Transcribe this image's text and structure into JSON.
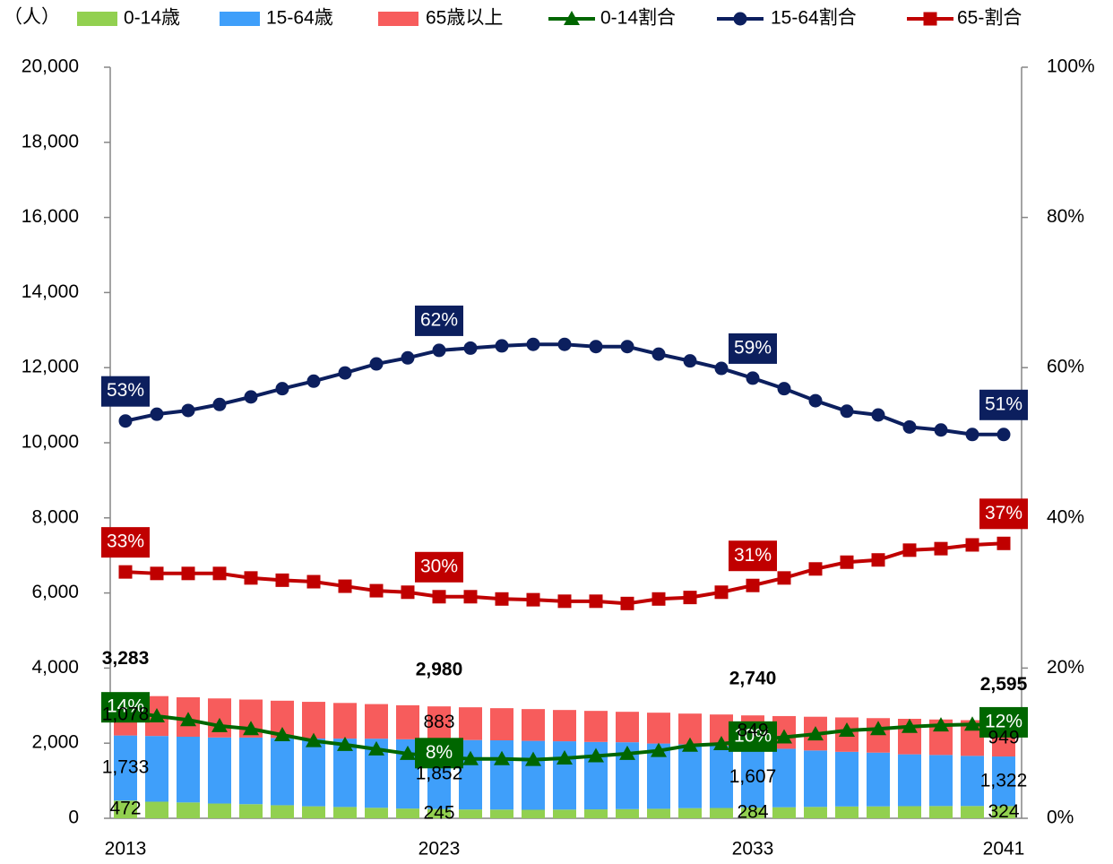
{
  "chart_data": {
    "type": "bar",
    "y_label": "（人）",
    "categories": [
      "2013",
      null,
      null,
      null,
      null,
      null,
      null,
      null,
      null,
      null,
      "2023",
      null,
      null,
      null,
      null,
      null,
      null,
      null,
      null,
      null,
      "2033",
      null,
      null,
      null,
      null,
      null,
      null,
      null,
      "2041"
    ],
    "ylim": [
      0,
      20000
    ],
    "yticks": [
      0,
      {
        "value": 2000,
        "label": "2,000"
      },
      {
        "value": 4000,
        "label": "4,000"
      },
      {
        "value": 6000,
        "label": "6,000"
      },
      {
        "value": 8000,
        "label": "8,000"
      },
      {
        "value": 10000,
        "label": "10,000"
      },
      {
        "value": 12000,
        "label": "12,000"
      },
      {
        "value": 14000,
        "label": "14,000"
      },
      {
        "value": 16000,
        "label": "16,000"
      },
      {
        "value": 18000,
        "label": "18,000"
      },
      {
        "value": 20000,
        "label": "20,000"
      }
    ],
    "y2lim": [
      0,
      100
    ],
    "y2ticks": [
      {
        "value": 0,
        "label": "0%"
      },
      {
        "value": 20,
        "label": "20%"
      },
      {
        "value": 40,
        "label": "40%"
      },
      {
        "value": 60,
        "label": "60%"
      },
      {
        "value": 80,
        "label": "80%"
      },
      {
        "value": 100,
        "label": "100%"
      }
    ],
    "series": [
      {
        "name": "0-14歳",
        "type": "bar",
        "color": "#92d050",
        "values": [
          472,
          442,
          422,
          393,
          376,
          348,
          319,
          301,
          280,
          259,
          245,
          234,
          232,
          227,
          231,
          237,
          244,
          253,
          270,
          274,
          284,
          294,
          303,
          314,
          317,
          323,
          326,
          327,
          324
        ],
        "value_labels": [
          "472",
          null,
          null,
          null,
          null,
          null,
          null,
          null,
          null,
          null,
          "245",
          null,
          null,
          null,
          null,
          null,
          null,
          null,
          null,
          null,
          "284",
          null,
          null,
          null,
          null,
          null,
          null,
          null,
          "324"
        ]
      },
      {
        "name": "15-64歳",
        "type": "bar",
        "color": "#3f9ffa",
        "values": [
          1733,
          1750,
          1750,
          1759,
          1774,
          1791,
          1805,
          1821,
          1840,
          1845,
          1852,
          1850,
          1844,
          1835,
          1820,
          1796,
          1781,
          1738,
          1698,
          1656,
          1607,
          1557,
          1503,
          1456,
          1432,
          1380,
          1360,
          1335,
          1322
        ],
        "value_labels": [
          "1,733",
          null,
          null,
          null,
          null,
          null,
          null,
          null,
          null,
          null,
          "1,852",
          null,
          null,
          null,
          null,
          null,
          null,
          null,
          null,
          null,
          "1,607",
          null,
          null,
          null,
          null,
          null,
          null,
          null,
          "1,322"
        ]
      },
      {
        "name": "65歳以上",
        "type": "bar",
        "color": "#f75c5c",
        "values": [
          1078,
          1061,
          1050,
          1040,
          1012,
          992,
          977,
          949,
          921,
          906,
          883,
          872,
          856,
          846,
          833,
          827,
          811,
          821,
          820,
          834,
          849,
          871,
          898,
          916,
          918,
          946,
          945,
          951,
          949
        ],
        "value_labels": [
          "1,078",
          null,
          null,
          null,
          null,
          null,
          null,
          null,
          null,
          null,
          "883",
          null,
          null,
          null,
          null,
          null,
          null,
          null,
          null,
          null,
          "849",
          null,
          null,
          null,
          null,
          null,
          null,
          null,
          "949"
        ]
      },
      {
        "name": "0-14割合",
        "type": "line",
        "axis": "y2",
        "color": "#006600",
        "marker": "triangle",
        "values": [
          14.3,
          13.6,
          13.1,
          12.3,
          11.9,
          11.1,
          10.3,
          9.8,
          9.2,
          8.6,
          8.2,
          7.9,
          7.9,
          7.8,
          8.0,
          8.3,
          8.6,
          9.0,
          9.7,
          9.9,
          10.4,
          10.8,
          11.2,
          11.7,
          11.9,
          12.2,
          12.4,
          12.5,
          12.3
        ],
        "value_labels": [
          "14%",
          null,
          null,
          null,
          null,
          null,
          null,
          null,
          null,
          null,
          "8%",
          null,
          null,
          null,
          null,
          null,
          null,
          null,
          null,
          null,
          "10%",
          null,
          null,
          null,
          null,
          null,
          null,
          null,
          "12%"
        ]
      },
      {
        "name": "15-64割合",
        "type": "line",
        "axis": "y2",
        "color": "#0c1f5e",
        "marker": "circle",
        "values": [
          52.9,
          53.8,
          54.3,
          55.1,
          56.1,
          57.2,
          58.2,
          59.3,
          60.5,
          61.3,
          62.3,
          62.6,
          62.9,
          63.1,
          63.1,
          62.8,
          62.8,
          61.8,
          60.9,
          59.9,
          58.6,
          57.2,
          55.6,
          54.2,
          53.7,
          52.1,
          51.7,
          51.1,
          51.1
        ],
        "value_labels": [
          "53%",
          null,
          null,
          null,
          null,
          null,
          null,
          null,
          null,
          null,
          "62%",
          null,
          null,
          null,
          null,
          null,
          null,
          null,
          null,
          null,
          "59%",
          null,
          null,
          null,
          null,
          null,
          null,
          null,
          "51%"
        ]
      },
      {
        "name": "65-割合",
        "type": "line",
        "axis": "y2",
        "color": "#c00000",
        "marker": "square",
        "values": [
          32.8,
          32.6,
          32.6,
          32.6,
          32.0,
          31.7,
          31.5,
          30.9,
          30.3,
          30.1,
          29.5,
          29.5,
          29.2,
          29.1,
          28.9,
          28.9,
          28.6,
          29.2,
          29.4,
          30.1,
          31.0,
          32.0,
          33.2,
          34.1,
          34.4,
          35.7,
          35.9,
          36.4,
          36.6
        ],
        "value_labels": [
          "33%",
          null,
          null,
          null,
          null,
          null,
          null,
          null,
          null,
          null,
          "30%",
          null,
          null,
          null,
          null,
          null,
          null,
          null,
          null,
          null,
          "31%",
          null,
          null,
          null,
          null,
          null,
          null,
          null,
          "37%"
        ]
      }
    ],
    "totals": [
      3283,
      null,
      null,
      null,
      null,
      null,
      null,
      null,
      null,
      null,
      2980,
      null,
      null,
      null,
      null,
      null,
      null,
      null,
      null,
      null,
      2740,
      null,
      null,
      null,
      null,
      null,
      null,
      null,
      2595
    ],
    "total_labels": [
      "3,283",
      null,
      null,
      null,
      null,
      null,
      null,
      null,
      null,
      null,
      "2,980",
      null,
      null,
      null,
      null,
      null,
      null,
      null,
      null,
      null,
      "2,740",
      null,
      null,
      null,
      null,
      null,
      null,
      null,
      "2,595"
    ]
  }
}
